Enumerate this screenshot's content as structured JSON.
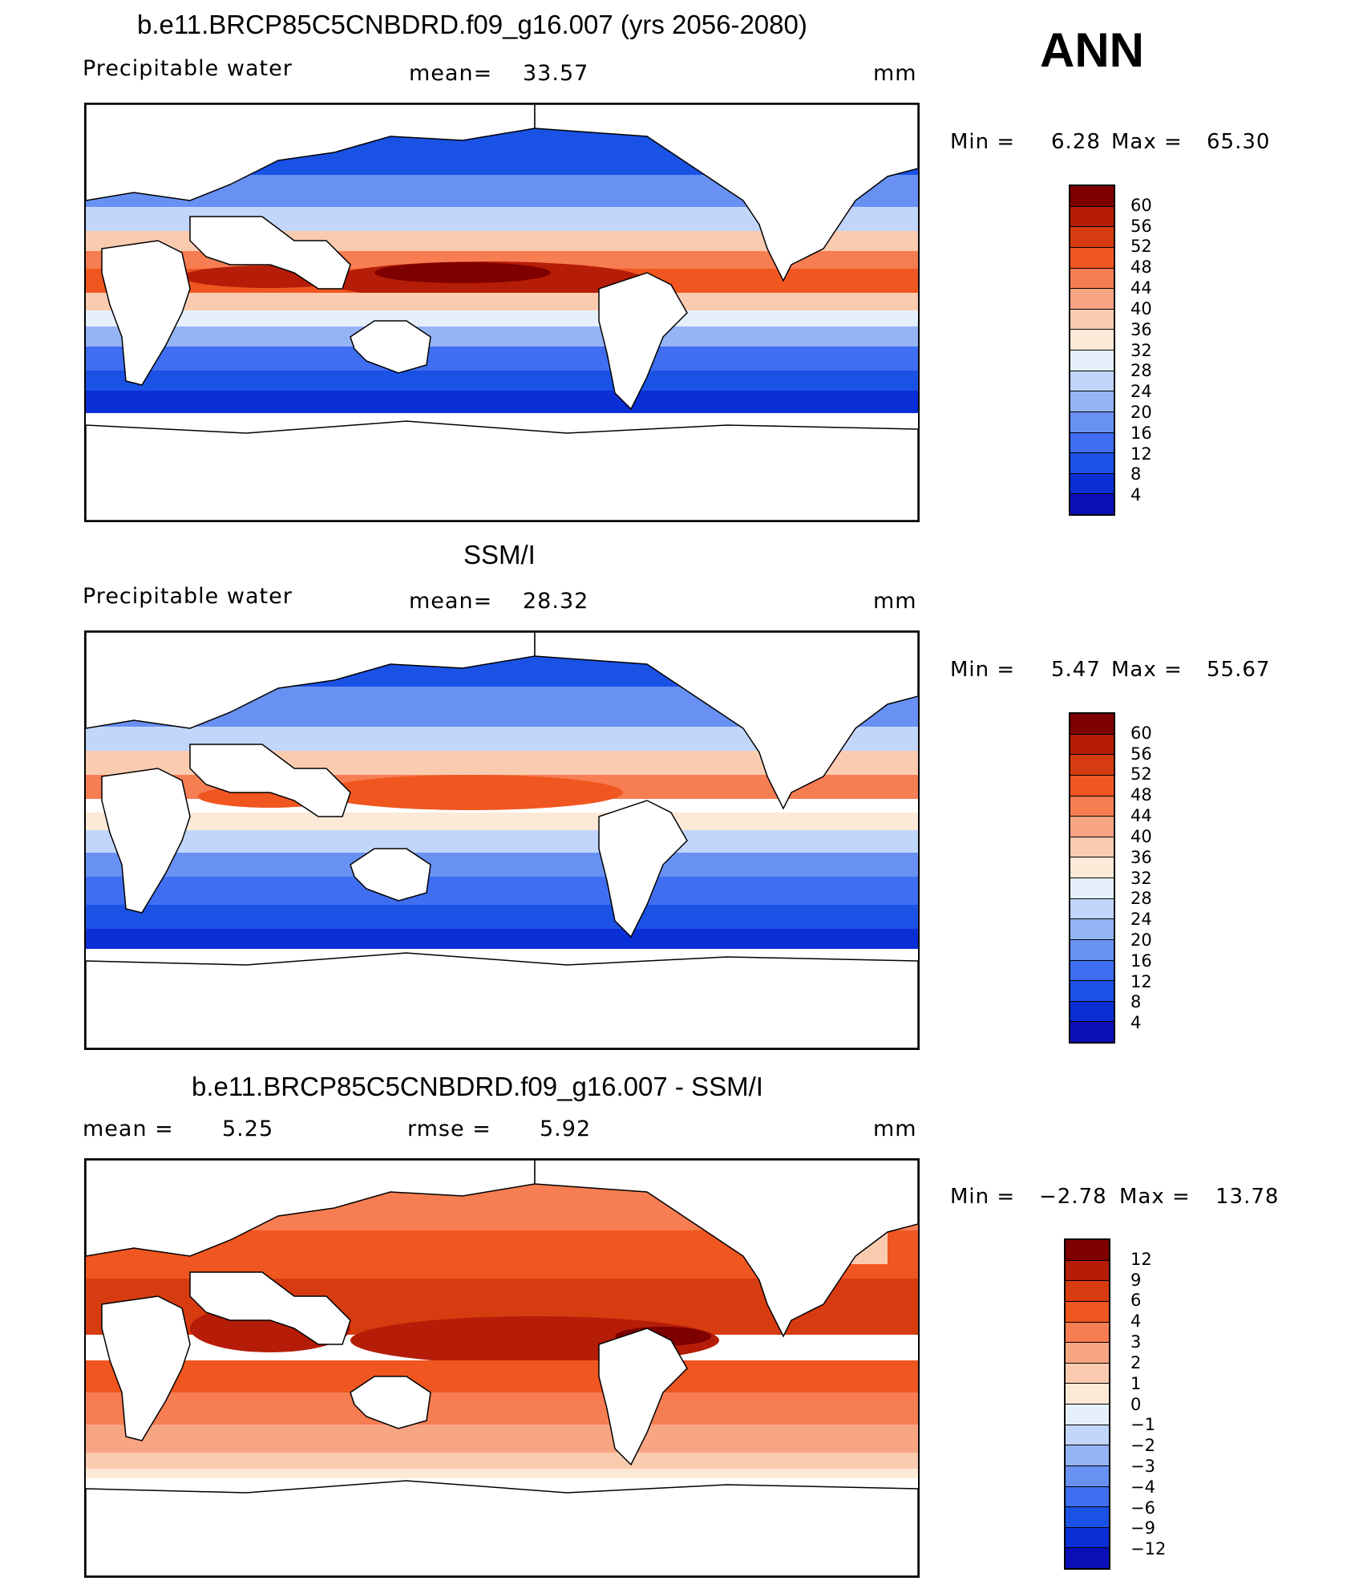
{
  "ann_label": "ANN",
  "legend_colors": [
    "#08007f",
    "#0a0fb8",
    "#0b2fd6",
    "#1a52e6",
    "#3f6ef0",
    "#6891f3",
    "#95b4f6",
    "#c1d6fa",
    "#e6f0fd",
    "#fde9d8",
    "#fbcbb0",
    "#f8a584",
    "#f77d52",
    "#f0561f",
    "#d63c10",
    "#b51d08",
    "#7e0000"
  ],
  "panels": [
    {
      "title": "b.e11.BRCP85C5CNBDRD.f09_g16.007 (yrs 2056-2080)",
      "left_label": "Precipitable  water",
      "center_label": "mean=",
      "center_value": "33.57",
      "units": "mm",
      "min_label": "Min  =",
      "min_value": "6.28",
      "max_label": "Max  =",
      "max_value": "65.30",
      "colorbar_labels": [
        "60",
        "56",
        "52",
        "48",
        "44",
        "40",
        "36",
        "32",
        "28",
        "24",
        "20",
        "16",
        "12",
        "8",
        "4"
      ]
    },
    {
      "title": "SSM/I",
      "left_label": "Precipitable  water",
      "center_label": "mean=",
      "center_value": "28.32",
      "units": "mm",
      "min_label": "Min  =",
      "min_value": "5.47",
      "max_label": "Max  =",
      "max_value": "55.67",
      "colorbar_labels": [
        "60",
        "56",
        "52",
        "48",
        "44",
        "40",
        "36",
        "32",
        "28",
        "24",
        "20",
        "16",
        "12",
        "8",
        "4"
      ]
    },
    {
      "title": "b.e11.BRCP85C5CNBDRD.f09_g16.007 - SSM/I",
      "left_label": "mean  =",
      "left_value": "5.25",
      "center_label": "rmse  =",
      "center_value": "5.92",
      "units": "mm",
      "min_label": "Min  =",
      "min_value": "−2.78",
      "max_label": "Max  =",
      "max_value": "13.78",
      "colorbar_labels": [
        "12",
        "9",
        "6",
        "4",
        "3",
        "2",
        "1",
        "0",
        "−1",
        "−2",
        "−3",
        "−4",
        "−6",
        "−9",
        "−12"
      ]
    }
  ]
}
